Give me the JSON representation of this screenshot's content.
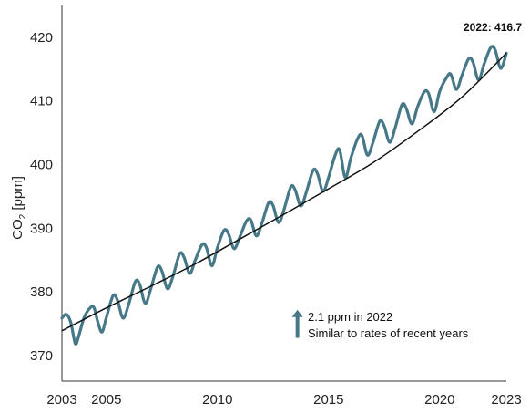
{
  "chart_data": {
    "type": "line",
    "ylabel_main": "CO",
    "ylabel_sub": "2",
    "ylabel_unit": " [ppm]",
    "ylim": [
      366,
      425
    ],
    "xlim": [
      2003,
      2023
    ],
    "yticks": [
      370,
      380,
      390,
      400,
      410,
      420
    ],
    "xticks": [
      2003,
      2005,
      2010,
      2015,
      2020,
      2023
    ],
    "grid": false,
    "series_colors": {
      "monthly": "#467887",
      "trend": "#111111"
    },
    "final_label": "2022: 416.7",
    "callout": {
      "line1": "2.1 ppm in 2022",
      "line2": "Similar to rates of recent years",
      "arrow_x": 2013.6,
      "arrow_y_base": 372.8,
      "arrow_y_top": 377.2
    },
    "series": [
      {
        "key": "monthly",
        "x": [
          2003.0,
          2003.2,
          2003.4,
          2003.6,
          2003.75,
          2004.0,
          2004.3,
          2004.45,
          2004.6,
          2004.8,
          2005.0,
          2005.3,
          2005.5,
          2005.75,
          2006.0,
          2006.3,
          2006.5,
          2006.75,
          2007.0,
          2007.3,
          2007.5,
          2007.75,
          2008.0,
          2008.3,
          2008.5,
          2008.75,
          2009.0,
          2009.3,
          2009.5,
          2009.75,
          2010.0,
          2010.3,
          2010.5,
          2010.75,
          2011.0,
          2011.3,
          2011.5,
          2011.75,
          2012.0,
          2012.3,
          2012.5,
          2012.75,
          2013.0,
          2013.3,
          2013.5,
          2013.75,
          2014.0,
          2014.3,
          2014.5,
          2014.75,
          2015.0,
          2015.3,
          2015.5,
          2015.75,
          2016.0,
          2016.3,
          2016.5,
          2016.75,
          2017.0,
          2017.3,
          2017.5,
          2017.75,
          2018.0,
          2018.3,
          2018.5,
          2018.75,
          2019.0,
          2019.3,
          2019.5,
          2019.75,
          2020.0,
          2020.3,
          2020.5,
          2020.75,
          2021.0,
          2021.3,
          2021.5,
          2021.75,
          2022.0,
          2022.3,
          2022.5,
          2022.75,
          2023.0
        ],
        "y": [
          375.9,
          376.5,
          375.2,
          371.9,
          373.0,
          376.0,
          377.6,
          377.5,
          375.5,
          373.7,
          376.0,
          379.4,
          378.7,
          375.9,
          378.0,
          381.6,
          381.2,
          378.2,
          380.5,
          383.9,
          383.3,
          380.5,
          382.5,
          386.0,
          385.4,
          382.9,
          385.0,
          387.4,
          387.0,
          384.1,
          387.0,
          389.7,
          389.1,
          386.8,
          388.6,
          391.1,
          391.3,
          388.8,
          390.8,
          394.0,
          393.6,
          390.9,
          393.0,
          396.5,
          396.0,
          393.5,
          395.7,
          399.1,
          398.6,
          395.8,
          398.0,
          401.5,
          402.3,
          398.0,
          401.0,
          404.0,
          404.6,
          401.5,
          403.5,
          406.8,
          406.1,
          403.5,
          405.8,
          409.4,
          408.8,
          406.4,
          409.0,
          411.4,
          411.2,
          408.3,
          411.5,
          413.6,
          414.2,
          411.8,
          414.0,
          416.6,
          416.1,
          413.3,
          415.8,
          418.4,
          418.0,
          415.1,
          417.5
        ]
      },
      {
        "key": "trend",
        "x": [
          2003.0,
          2005.0,
          2007.0,
          2009.0,
          2011.0,
          2013.0,
          2015.0,
          2017.0,
          2019.0,
          2021.0,
          2023.0
        ],
        "y": [
          373.9,
          377.5,
          380.9,
          384.4,
          388.3,
          392.2,
          396.2,
          400.3,
          405.2,
          410.6,
          417.5
        ]
      }
    ]
  }
}
